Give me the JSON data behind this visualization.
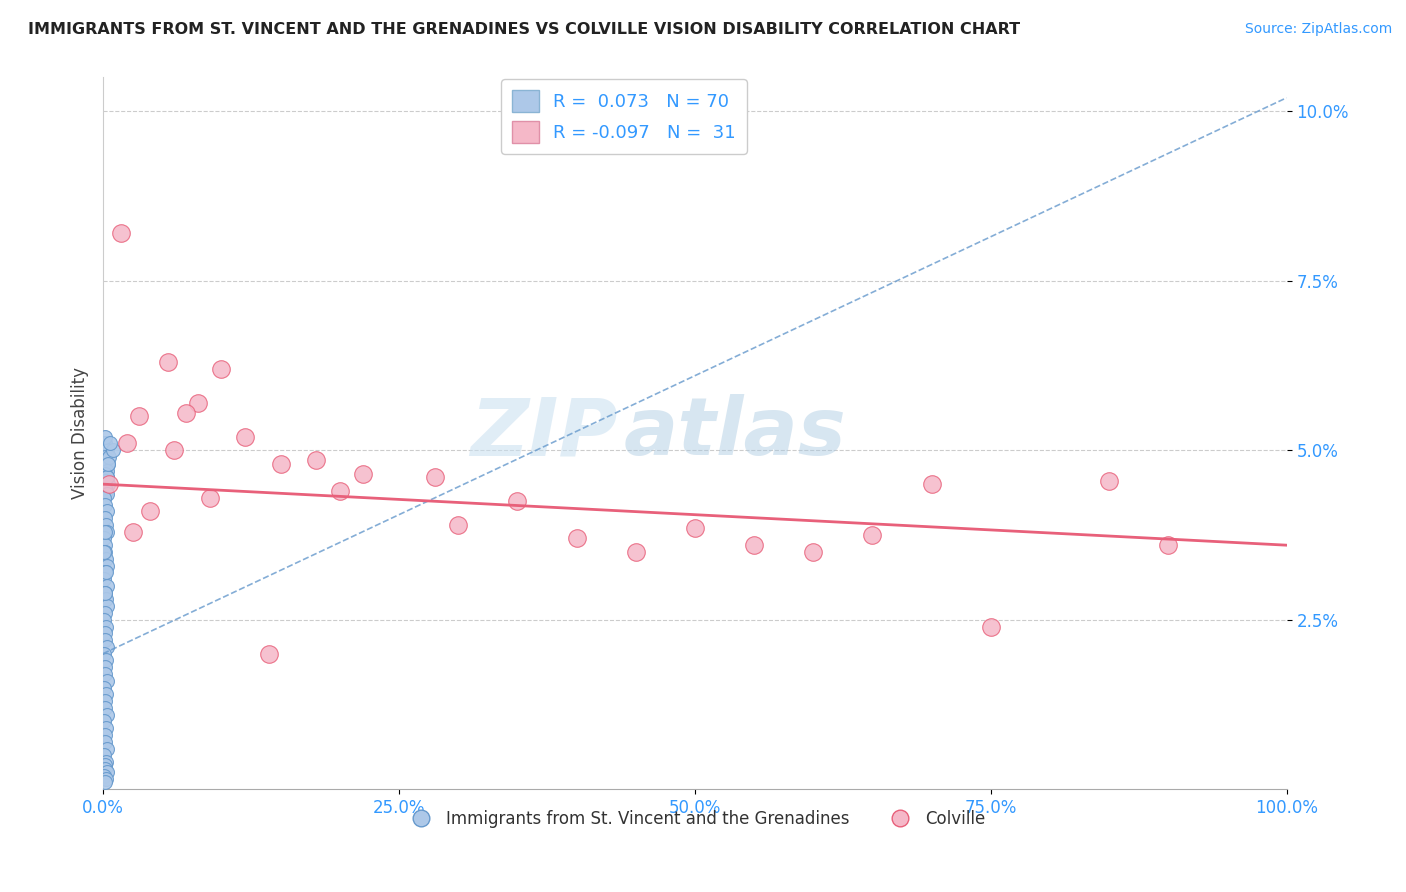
{
  "title": "IMMIGRANTS FROM ST. VINCENT AND THE GRENADINES VS COLVILLE VISION DISABILITY CORRELATION CHART",
  "source_text": "Source: ZipAtlas.com",
  "xlabel": "",
  "ylabel": "Vision Disability",
  "legend_label_blue": "Immigrants from St. Vincent and the Grenadines",
  "legend_label_pink": "Colville",
  "R_blue": 0.073,
  "N_blue": 70,
  "R_pink": -0.097,
  "N_pink": 31,
  "xlim": [
    0.0,
    100.0
  ],
  "ylim": [
    0.0,
    10.5
  ],
  "yticks": [
    2.5,
    5.0,
    7.5,
    10.0
  ],
  "xticks": [
    0.0,
    25.0,
    50.0,
    75.0,
    100.0
  ],
  "xtick_labels": [
    "0.0%",
    "25.0%",
    "50.0%",
    "75.0%",
    "100.0%"
  ],
  "ytick_labels": [
    "2.5%",
    "5.0%",
    "7.5%",
    "10.0%"
  ],
  "color_blue": "#adc8e8",
  "color_pink": "#f5b8c8",
  "color_blue_line": "#6699cc",
  "color_pink_line": "#e8607a",
  "watermark_zip": "ZIP",
  "watermark_atlas": "atlas",
  "blue_line_x0": 0.0,
  "blue_line_y0": 2.0,
  "blue_line_x1": 100.0,
  "blue_line_y1": 10.2,
  "pink_line_x0": 0.0,
  "pink_line_y0": 4.5,
  "pink_line_x1": 100.0,
  "pink_line_y1": 3.6,
  "blue_points_x": [
    0.2,
    0.3,
    0.15,
    0.4,
    0.25,
    0.1,
    0.35,
    0.2,
    0.3,
    0.15,
    0.4,
    0.2,
    0.25,
    0.3,
    0.1,
    0.2,
    0.35,
    0.15,
    0.25,
    0.3,
    0.1,
    0.2,
    0.15,
    0.25,
    0.3,
    0.2,
    0.1,
    0.35,
    0.15,
    0.25,
    0.3,
    0.2,
    0.1,
    0.25,
    0.15,
    0.2,
    0.3,
    0.1,
    0.25,
    0.2,
    0.15,
    0.3,
    0.1,
    0.25,
    0.2,
    0.15,
    0.3,
    0.1,
    0.25,
    0.2,
    0.15,
    0.3,
    0.1,
    0.25,
    0.2,
    0.15,
    0.3,
    0.1,
    0.25,
    0.2,
    0.5,
    0.15,
    0.3,
    0.8,
    0.4,
    0.6,
    0.2,
    0.1,
    0.25,
    0.15
  ],
  "blue_points_y": [
    5.1,
    5.0,
    4.9,
    4.8,
    4.85,
    4.75,
    4.7,
    4.65,
    4.6,
    4.55,
    4.5,
    4.45,
    4.4,
    4.35,
    4.3,
    4.2,
    4.1,
    4.0,
    3.9,
    3.8,
    3.7,
    3.6,
    3.5,
    3.4,
    3.3,
    3.2,
    3.1,
    3.0,
    2.9,
    2.8,
    2.7,
    2.6,
    2.5,
    2.4,
    2.3,
    2.2,
    2.1,
    2.0,
    1.9,
    1.8,
    1.7,
    1.6,
    1.5,
    1.4,
    1.3,
    1.2,
    1.1,
    1.0,
    0.9,
    0.8,
    0.7,
    0.6,
    0.5,
    0.4,
    0.35,
    0.3,
    0.25,
    0.2,
    0.15,
    0.1,
    4.9,
    5.2,
    4.6,
    5.0,
    4.8,
    5.1,
    3.8,
    3.5,
    3.2,
    2.9
  ],
  "pink_points_x": [
    1.5,
    5.5,
    10.0,
    8.0,
    3.0,
    7.0,
    12.0,
    18.0,
    2.0,
    6.0,
    15.0,
    22.0,
    28.0,
    9.0,
    20.0,
    35.0,
    40.0,
    50.0,
    55.0,
    65.0,
    70.0,
    85.0,
    90.0,
    4.0,
    14.0,
    30.0,
    45.0,
    60.0,
    75.0,
    0.5,
    2.5
  ],
  "pink_points_y": [
    8.2,
    6.3,
    6.2,
    5.7,
    5.5,
    5.55,
    5.2,
    4.85,
    5.1,
    5.0,
    4.8,
    4.65,
    4.6,
    4.3,
    4.4,
    4.25,
    3.7,
    3.85,
    3.6,
    3.75,
    4.5,
    4.55,
    3.6,
    4.1,
    2.0,
    3.9,
    3.5,
    3.5,
    2.4,
    4.5,
    3.8
  ]
}
